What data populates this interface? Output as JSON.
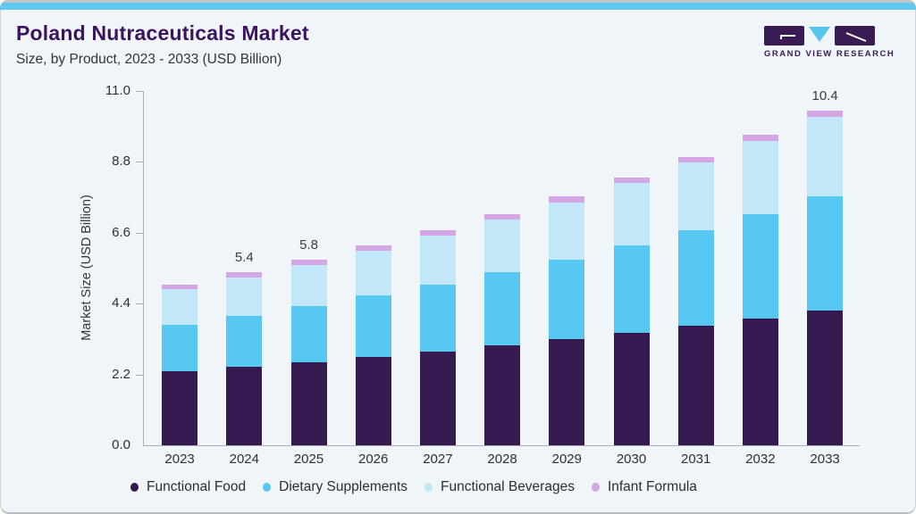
{
  "header": {
    "title": "Poland Nutraceuticals Market",
    "subtitle": "Size, by Product, 2023 - 2033 (USD Billion)"
  },
  "logo": {
    "text": "GRAND VIEW RESEARCH"
  },
  "colors": {
    "accent_strip": "#5fc9f2",
    "top_edge": "#c4c4c4",
    "card_bg": "#eff5f9",
    "card_border": "#ccd5db",
    "title": "#3c1361",
    "axis_line": "#a9b2ba",
    "logo_purple": "#3a1c54",
    "logo_cyan": "#55c6ee"
  },
  "chart_data": {
    "type": "bar",
    "stacked": true,
    "title": "Poland Nutraceuticals Market Size, by Product, 2023 - 2033 (USD Billion)",
    "xlabel": "",
    "ylabel": "Market Size (USD Billion)",
    "ylim": [
      0,
      11
    ],
    "yticks": [
      0.0,
      2.2,
      4.4,
      6.6,
      8.8,
      11.0
    ],
    "grid": false,
    "legend_position": "bottom",
    "categories": [
      "2023",
      "2024",
      "2025",
      "2026",
      "2027",
      "2028",
      "2029",
      "2030",
      "2031",
      "2032",
      "2033"
    ],
    "series": [
      {
        "name": "Functional Food",
        "color": "#35194f",
        "values": [
          2.3,
          2.44,
          2.59,
          2.75,
          2.92,
          3.1,
          3.29,
          3.5,
          3.71,
          3.94,
          4.19
        ]
      },
      {
        "name": "Dietary Supplements",
        "color": "#56c8f2",
        "values": [
          1.45,
          1.58,
          1.73,
          1.9,
          2.07,
          2.27,
          2.48,
          2.71,
          2.97,
          3.25,
          3.55
        ]
      },
      {
        "name": "Functional Beverages",
        "color": "#c2e7f8",
        "values": [
          1.1,
          1.19,
          1.29,
          1.4,
          1.52,
          1.64,
          1.78,
          1.93,
          2.09,
          2.26,
          2.45
        ]
      },
      {
        "name": "Infant Formula",
        "color": "#d5a6e5",
        "values": [
          0.15,
          0.16,
          0.16,
          0.17,
          0.17,
          0.18,
          0.18,
          0.18,
          0.19,
          0.19,
          0.2
        ]
      }
    ],
    "totals_shown": {
      "2024": "5.4",
      "2025": "5.8",
      "2033": "10.4"
    }
  }
}
